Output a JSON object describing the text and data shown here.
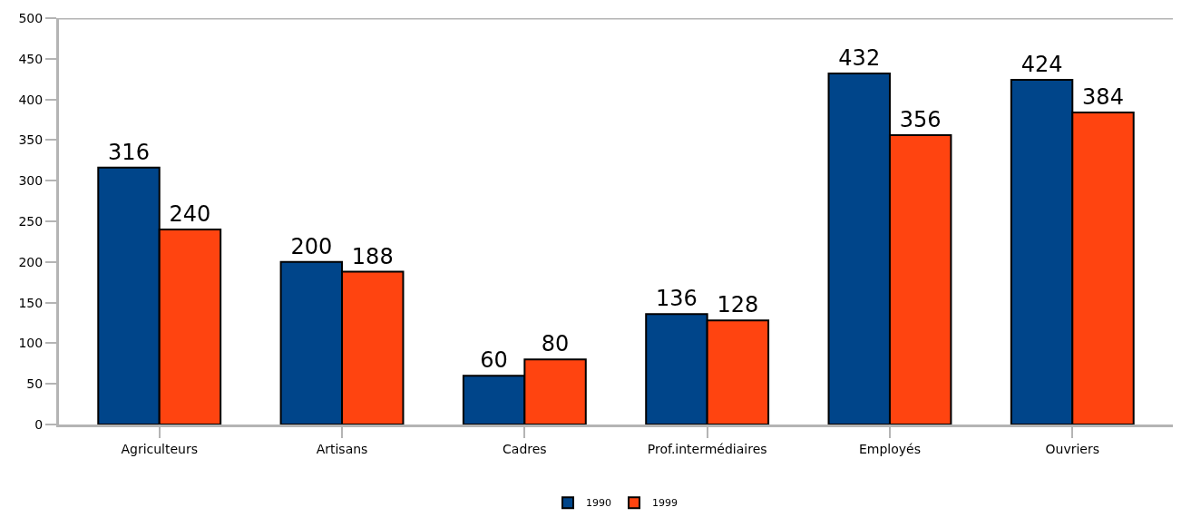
{
  "chart_data": {
    "type": "bar",
    "categories": [
      "Agriculteurs",
      "Artisans",
      "Cadres",
      "Prof.intermédiaires",
      "Employés",
      "Ouvriers"
    ],
    "series": [
      {
        "name": "1990",
        "color": "#00458a",
        "values": [
          316,
          200,
          60,
          136,
          432,
          424
        ]
      },
      {
        "name": "1999",
        "color": "#ff4410",
        "values": [
          240,
          188,
          80,
          128,
          356,
          384
        ]
      }
    ],
    "ylim": [
      0,
      500
    ],
    "yticks": [
      0,
      50,
      100,
      150,
      200,
      250,
      300,
      350,
      400,
      450,
      500
    ],
    "legend": "bottom",
    "data_labels": true
  }
}
